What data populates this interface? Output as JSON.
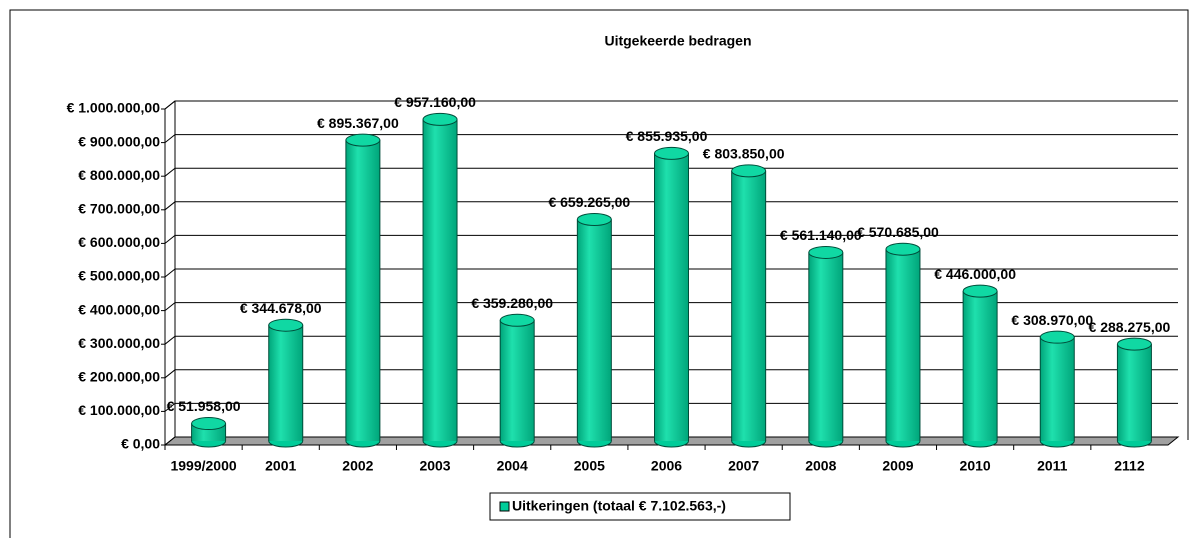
{
  "chart_data": {
    "type": "bar",
    "title": "Uitgekeerde bedragen",
    "categories": [
      "1999/2000",
      "2001",
      "2002",
      "2003",
      "2004",
      "2005",
      "2006",
      "2007",
      "2008",
      "2009",
      "2010",
      "2011",
      "2112"
    ],
    "series": [
      {
        "name": "Uitkeringen (totaal € 7.102.563,-)",
        "color": "#00cc99",
        "values": [
          51958,
          344678,
          895367,
          957160,
          359280,
          659265,
          855935,
          803850,
          561140,
          570685,
          446000,
          308970,
          288275
        ],
        "value_labels": [
          "€ 51.958,00",
          "€ 344.678,00",
          "€ 895.367,00",
          "€ 957.160,00",
          "€ 359.280,00",
          "€ 659.265,00",
          "€ 855.935,00",
          "€ 803.850,00",
          "€ 561.140,00",
          "€ 570.685,00",
          "€ 446.000,00",
          "€ 308.970,00",
          "€ 288.275,00"
        ]
      }
    ],
    "ylim": [
      0,
      1000000
    ],
    "yticks": [
      {
        "value": 0,
        "label": "€ 0,00"
      },
      {
        "value": 100000,
        "label": "€ 100.000,00"
      },
      {
        "value": 200000,
        "label": "€ 200.000,00"
      },
      {
        "value": 300000,
        "label": "€ 300.000,00"
      },
      {
        "value": 400000,
        "label": "€ 400.000,00"
      },
      {
        "value": 500000,
        "label": "€ 500.000,00"
      },
      {
        "value": 600000,
        "label": "€ 600.000,00"
      },
      {
        "value": 700000,
        "label": "€ 700.000,00"
      },
      {
        "value": 800000,
        "label": "€ 800.000,00"
      },
      {
        "value": 900000,
        "label": "€ 900.000,00"
      },
      {
        "value": 1000000,
        "label": "€ 1.000.000,00"
      }
    ],
    "grid": true
  }
}
